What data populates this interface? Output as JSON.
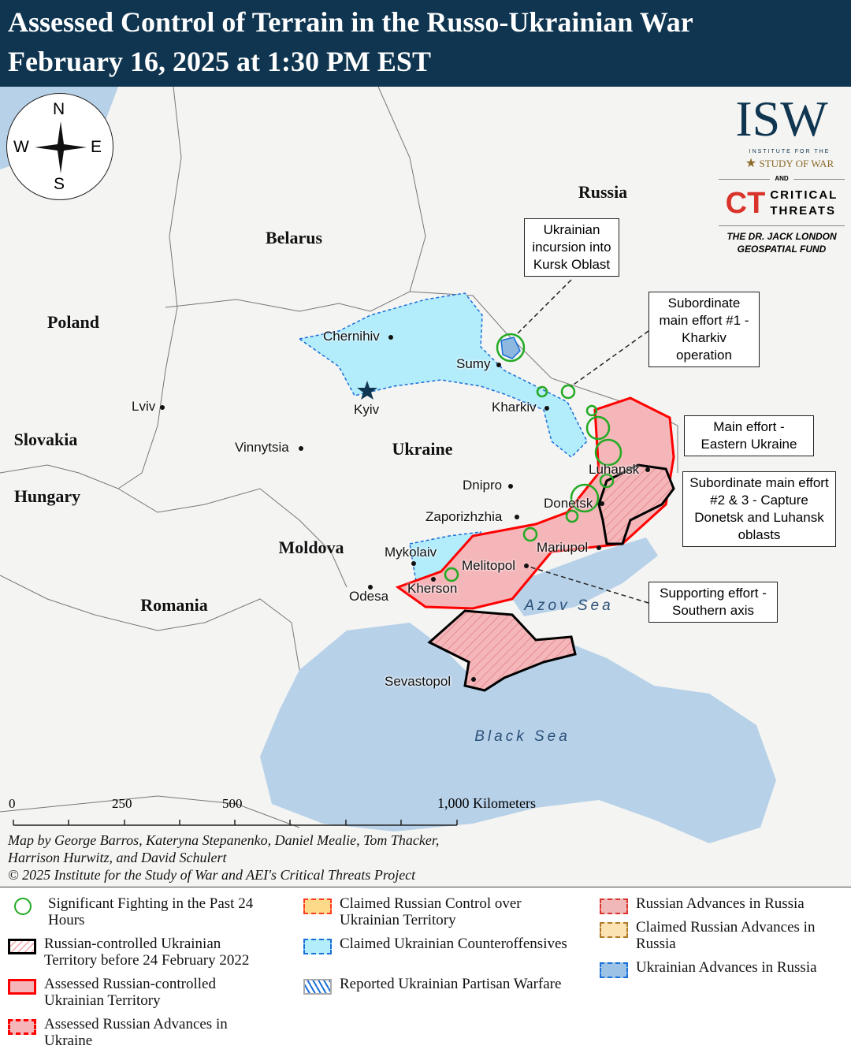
{
  "header": {
    "title_line1": "Assessed Control of Terrain in the Russo-Ukrainian War",
    "title_line2": "February 16, 2025 at 1:30 PM EST"
  },
  "compass": {
    "n": "N",
    "s": "S",
    "e": "E",
    "w": "W"
  },
  "logo": {
    "isw": "ISW",
    "isw_sub1": "INSTITUTE FOR THE",
    "isw_sub2": "STUDY OF WAR",
    "and": "AND",
    "ct": "CT",
    "ct_line1": "CRITICAL",
    "ct_line2": "THREATS",
    "fund_line1": "THE DR. JACK LONDON",
    "fund_line2": "GEOSPATIAL FUND"
  },
  "countries": {
    "russia": "Russia",
    "belarus": "Belarus",
    "poland": "Poland",
    "slovakia": "Slovakia",
    "hungary": "Hungary",
    "moldova": "Moldova",
    "romania": "Romania",
    "ukraine": "Ukraine"
  },
  "cities": {
    "chernihiv": "Chernihiv",
    "sumy": "Sumy",
    "kyiv": "Kyiv",
    "kharkiv": "Kharkiv",
    "lviv": "Lviv",
    "vinnytsia": "Vinnytsia",
    "dnipro": "Dnipro",
    "luhansk": "Luhansk",
    "donetsk": "Donetsk",
    "zaporizhzhia": "Zaporizhzhia",
    "mariupol": "Mariupol",
    "mykolaiv": "Mykolaiv",
    "melitopol": "Melitopol",
    "kherson": "Kherson",
    "odesa": "Odesa",
    "sevastopol": "Sevastopol"
  },
  "seas": {
    "azov": "Azov Sea",
    "black": "Black Sea"
  },
  "callouts": {
    "kursk": "Ukrainian incursion into Kursk Oblast",
    "kharkiv": "Subordinate main effort #1 - Kharkiv operation",
    "eastern": "Main effort - Eastern Ukraine",
    "donetsk": "Subordinate main effort #2 & 3 - Capture Donetsk and Luhansk oblasts",
    "southern": "Supporting effort - Southern axis"
  },
  "scale": {
    "t0": "0",
    "t250": "250",
    "t500": "500",
    "t1000": "1,000 Kilometers"
  },
  "credits": {
    "line1": "Map by George Barros, Kateryna Stepanenko, Daniel Mealie, Tom Thacker,",
    "line2": "Harrison Hurwitz, and David Schulert",
    "line3": "© 2025 Institute for the Study of War and AEI's Critical Threats Project"
  },
  "colors": {
    "header": "#0f3550",
    "occupied": "#f4b6b9",
    "front": "#ff0000",
    "ukr_claimed": "#b3ecfb",
    "sea": "#b7d1e9",
    "fighting": "#22aa22"
  },
  "legend": [
    {
      "label": "Significant Fighting in the Past 24 Hours"
    },
    {
      "label": "Russian-controlled Ukrainian Territory before 24 February 2022"
    },
    {
      "label": "Assessed Russian-controlled Ukrainian Territory"
    },
    {
      "label": "Assessed Russian Advances in Ukraine"
    },
    {
      "label": "Claimed Russian Control over Ukrainian Territory"
    },
    {
      "label": "Claimed Ukrainian Counteroffensives"
    },
    {
      "label": "Reported Ukrainian Partisan Warfare"
    },
    {
      "label": "Russian Advances in Russia"
    },
    {
      "label": "Claimed Russian Advances in Russia"
    },
    {
      "label": "Ukrainian Advances in Russia"
    }
  ]
}
